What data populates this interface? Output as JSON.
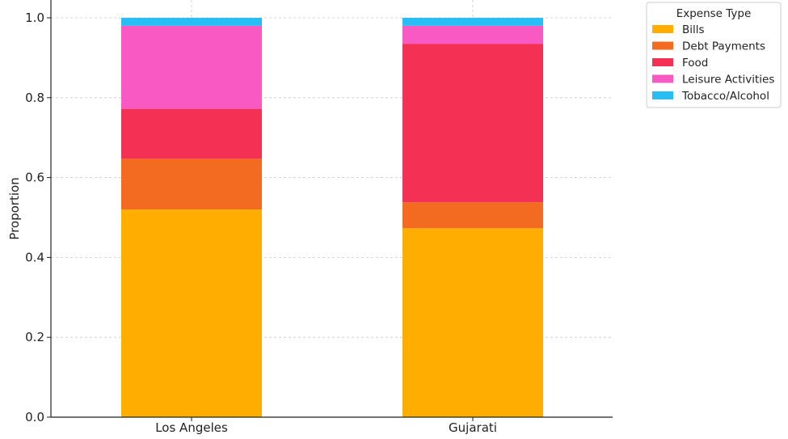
{
  "chart_data": {
    "type": "bar",
    "stacked": true,
    "title": "",
    "xlabel": "",
    "ylabel": "Proportion",
    "ylim": [
      0,
      1.0
    ],
    "yticks": [
      "0.0",
      "0.2",
      "0.4",
      "0.6",
      "0.8",
      "1.0"
    ],
    "grid": true,
    "categories": [
      "Los Angeles",
      "Gujarati"
    ],
    "series": [
      {
        "name": "Bills",
        "color": "#FFAE00",
        "values": [
          0.52,
          0.473
        ]
      },
      {
        "name": "Debt Payments",
        "color": "#F26B21",
        "values": [
          0.127,
          0.065
        ]
      },
      {
        "name": "Food",
        "color": "#F53055",
        "values": [
          0.125,
          0.397
        ]
      },
      {
        "name": "Leisure Activities",
        "color": "#F859C2",
        "values": [
          0.208,
          0.045
        ]
      },
      {
        "name": "Tobacco/Alcohol",
        "color": "#29BDF5",
        "values": [
          0.02,
          0.02
        ]
      }
    ],
    "legend": {
      "title": "Expense Type",
      "position": "outside-top-right"
    }
  }
}
